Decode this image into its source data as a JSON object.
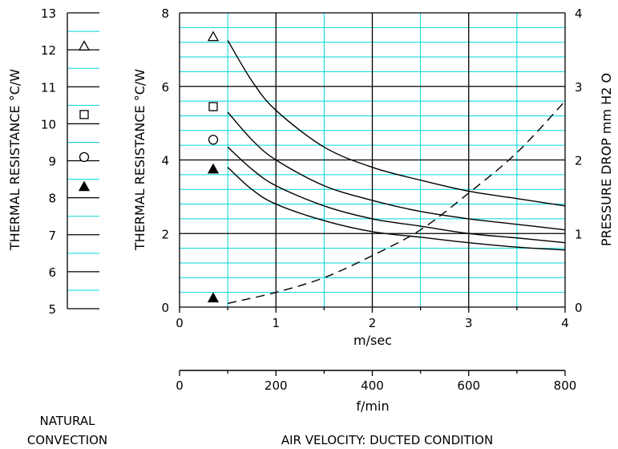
{
  "chart_data": [
    {
      "type": "scatter",
      "panel": "natural-convection",
      "ylabel": "THERMAL RESISTANCE  °C/W",
      "ylim": [
        5,
        13
      ],
      "yticks": [
        "5",
        "6",
        "7",
        "8",
        "9",
        "10",
        "11",
        "12",
        "13"
      ],
      "footer": [
        "NATURAL",
        "CONVECTION"
      ],
      "points": [
        {
          "marker": "triangle-open",
          "y": 12.1
        },
        {
          "marker": "square-open",
          "y": 10.25
        },
        {
          "marker": "circle-open",
          "y": 9.1
        },
        {
          "marker": "triangle-filled",
          "y": 8.3
        }
      ]
    },
    {
      "type": "line",
      "panel": "forced-convection",
      "ylabel_left": "THERMAL RESISTANCE  °C/W",
      "ylabel_right": "PRESSURE  DROP   mm H2 O",
      "xlabel": "m/sec",
      "xlabel_secondary": "f/min",
      "footer": "AIR VELOCITY:  DUCTED CONDITION",
      "xlim": [
        0,
        4
      ],
      "ylim_left": [
        0,
        8
      ],
      "ylim_right": [
        0,
        4
      ],
      "xlim_secondary": [
        0,
        800
      ],
      "xticks": [
        "0",
        "1",
        "2",
        "3",
        "4"
      ],
      "yticks_left": [
        "0",
        "2",
        "4",
        "6",
        "8"
      ],
      "yticks_right": [
        "0",
        "1",
        "2",
        "3",
        "4"
      ],
      "xticks_secondary": [
        "0",
        "200",
        "400",
        "600",
        "800"
      ],
      "series": [
        {
          "marker": "triangle-open",
          "style": "solid",
          "x": [
            0.5,
            0.75,
            1.0,
            1.5,
            2.0,
            2.5,
            3.0,
            3.5,
            4.0
          ],
          "y": [
            7.25,
            6.15,
            5.35,
            4.35,
            3.8,
            3.45,
            3.15,
            2.95,
            2.75
          ]
        },
        {
          "marker": "square-open",
          "style": "solid",
          "x": [
            0.5,
            0.75,
            1.0,
            1.5,
            2.0,
            2.5,
            3.0,
            3.5,
            4.0
          ],
          "y": [
            5.3,
            4.55,
            4.0,
            3.3,
            2.9,
            2.6,
            2.4,
            2.25,
            2.1
          ]
        },
        {
          "marker": "circle-open",
          "style": "solid",
          "x": [
            0.5,
            0.75,
            1.0,
            1.5,
            2.0,
            2.5,
            3.0,
            3.5,
            4.0
          ],
          "y": [
            4.35,
            3.75,
            3.3,
            2.75,
            2.4,
            2.2,
            2.0,
            1.88,
            1.75
          ]
        },
        {
          "marker": "triangle-filled",
          "style": "solid",
          "x": [
            0.5,
            0.75,
            1.0,
            1.5,
            2.0,
            2.5,
            3.0,
            3.5,
            4.0
          ],
          "y": [
            3.8,
            3.2,
            2.8,
            2.35,
            2.05,
            1.9,
            1.75,
            1.63,
            1.55
          ]
        }
      ],
      "pressure_drop": {
        "style": "dashed",
        "x": [
          0.5,
          1.0,
          1.5,
          2.0,
          2.5,
          3.0,
          3.5,
          4.0
        ],
        "y": [
          0.05,
          0.2,
          0.4,
          0.7,
          1.05,
          1.55,
          2.1,
          2.8
        ]
      },
      "markers_left": [
        {
          "marker": "triangle-open",
          "y": 7.35
        },
        {
          "marker": "square-open",
          "y": 5.45
        },
        {
          "marker": "circle-open",
          "y": 4.55
        },
        {
          "marker": "triangle-filled",
          "y": 3.75
        }
      ],
      "marker_right": {
        "marker": "triangle-filled",
        "y": 0.08
      }
    }
  ],
  "colors": {
    "grid_major": "#000000",
    "grid_minor": "#00d6d6",
    "line": "#000000"
  }
}
